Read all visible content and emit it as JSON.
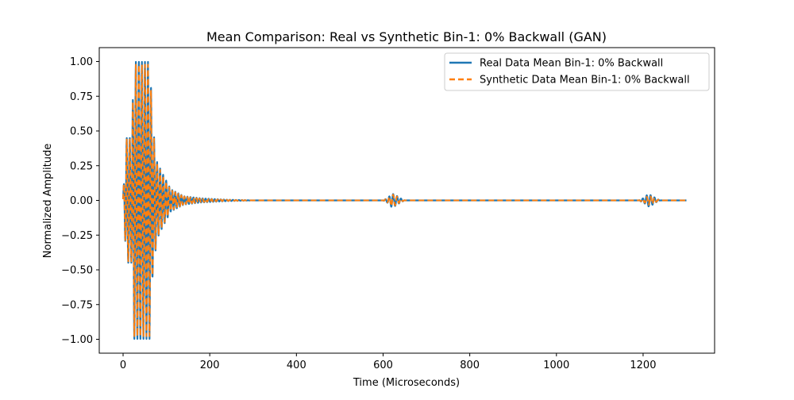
{
  "chart_data": {
    "type": "line",
    "title": "Mean Comparison: Real vs Synthetic Bin-1: 0% Backwall (GAN)",
    "xlabel": "Time (Microseconds)",
    "ylabel": "Normalized Amplitude",
    "xlim": [
      -55,
      1365
    ],
    "ylim": [
      -1.1,
      1.1
    ],
    "xticks": [
      0,
      200,
      400,
      600,
      800,
      1000,
      1200
    ],
    "xtick_labels": [
      "0",
      "200",
      "400",
      "600",
      "800",
      "1000",
      "1200"
    ],
    "yticks": [
      -1.0,
      -0.75,
      -0.5,
      -0.25,
      0.0,
      0.25,
      0.5,
      0.75,
      1.0
    ],
    "ytick_labels": [
      "−1.00",
      "−0.75",
      "−0.50",
      "−0.25",
      "0.00",
      "0.25",
      "0.50",
      "0.75",
      "1.00"
    ],
    "grid": false,
    "legend_position": "top-right",
    "series": [
      {
        "name": "Real Data Mean Bin-1: 0% Backwall",
        "color": "#1f77b4",
        "style": "solid",
        "segments": [
          {
            "t_start": 0,
            "t_end": 300,
            "period": 7,
            "phase": 0.3,
            "envelope": [
              [
                0,
                0.03
              ],
              [
                8,
                0.45
              ],
              [
                20,
                0.45
              ],
              [
                25,
                1.0
              ],
              [
                62,
                1.0
              ],
              [
                68,
                0.55
              ],
              [
                78,
                0.28
              ],
              [
                90,
                0.2
              ],
              [
                110,
                0.08
              ],
              [
                140,
                0.03
              ],
              [
                180,
                0.015
              ],
              [
                240,
                0.005
              ],
              [
                300,
                0.0
              ]
            ]
          },
          {
            "t_start": 600,
            "t_end": 650,
            "period": 9,
            "phase": 0.0,
            "envelope": [
              [
                600,
                0.0
              ],
              [
                612,
                0.02
              ],
              [
                620,
                0.05
              ],
              [
                628,
                0.04
              ],
              [
                640,
                0.015
              ],
              [
                650,
                0.0
              ]
            ]
          },
          {
            "t_start": 1190,
            "t_end": 1240,
            "period": 9,
            "phase": 0.0,
            "envelope": [
              [
                1190,
                0.0
              ],
              [
                1203,
                0.02
              ],
              [
                1211,
                0.045
              ],
              [
                1220,
                0.035
              ],
              [
                1232,
                0.01
              ],
              [
                1240,
                0.0
              ]
            ]
          }
        ],
        "t_end": 1300
      },
      {
        "name": "Synthetic Data Mean Bin-1: 0% Backwall",
        "color": "#ff7f0e",
        "style": "dashed",
        "segments": [
          {
            "t_start": 0,
            "t_end": 300,
            "period": 7,
            "phase": 0.3,
            "envelope": [
              [
                0,
                0.03
              ],
              [
                8,
                0.44
              ],
              [
                20,
                0.44
              ],
              [
                25,
                0.98
              ],
              [
                62,
                0.98
              ],
              [
                68,
                0.54
              ],
              [
                78,
                0.27
              ],
              [
                90,
                0.19
              ],
              [
                110,
                0.075
              ],
              [
                140,
                0.028
              ],
              [
                180,
                0.012
              ],
              [
                240,
                0.004
              ],
              [
                300,
                0.0
              ]
            ]
          },
          {
            "t_start": 600,
            "t_end": 650,
            "period": 9,
            "phase": 0.0,
            "envelope": [
              [
                600,
                0.0
              ],
              [
                612,
                0.018
              ],
              [
                620,
                0.045
              ],
              [
                628,
                0.036
              ],
              [
                640,
                0.012
              ],
              [
                650,
                0.0
              ]
            ]
          },
          {
            "t_start": 1190,
            "t_end": 1240,
            "period": 9,
            "phase": 0.0,
            "envelope": [
              [
                1190,
                0.0
              ],
              [
                1203,
                0.015
              ],
              [
                1211,
                0.032
              ],
              [
                1220,
                0.028
              ],
              [
                1232,
                0.008
              ],
              [
                1240,
                0.0
              ]
            ]
          }
        ],
        "t_end": 1300
      }
    ]
  }
}
